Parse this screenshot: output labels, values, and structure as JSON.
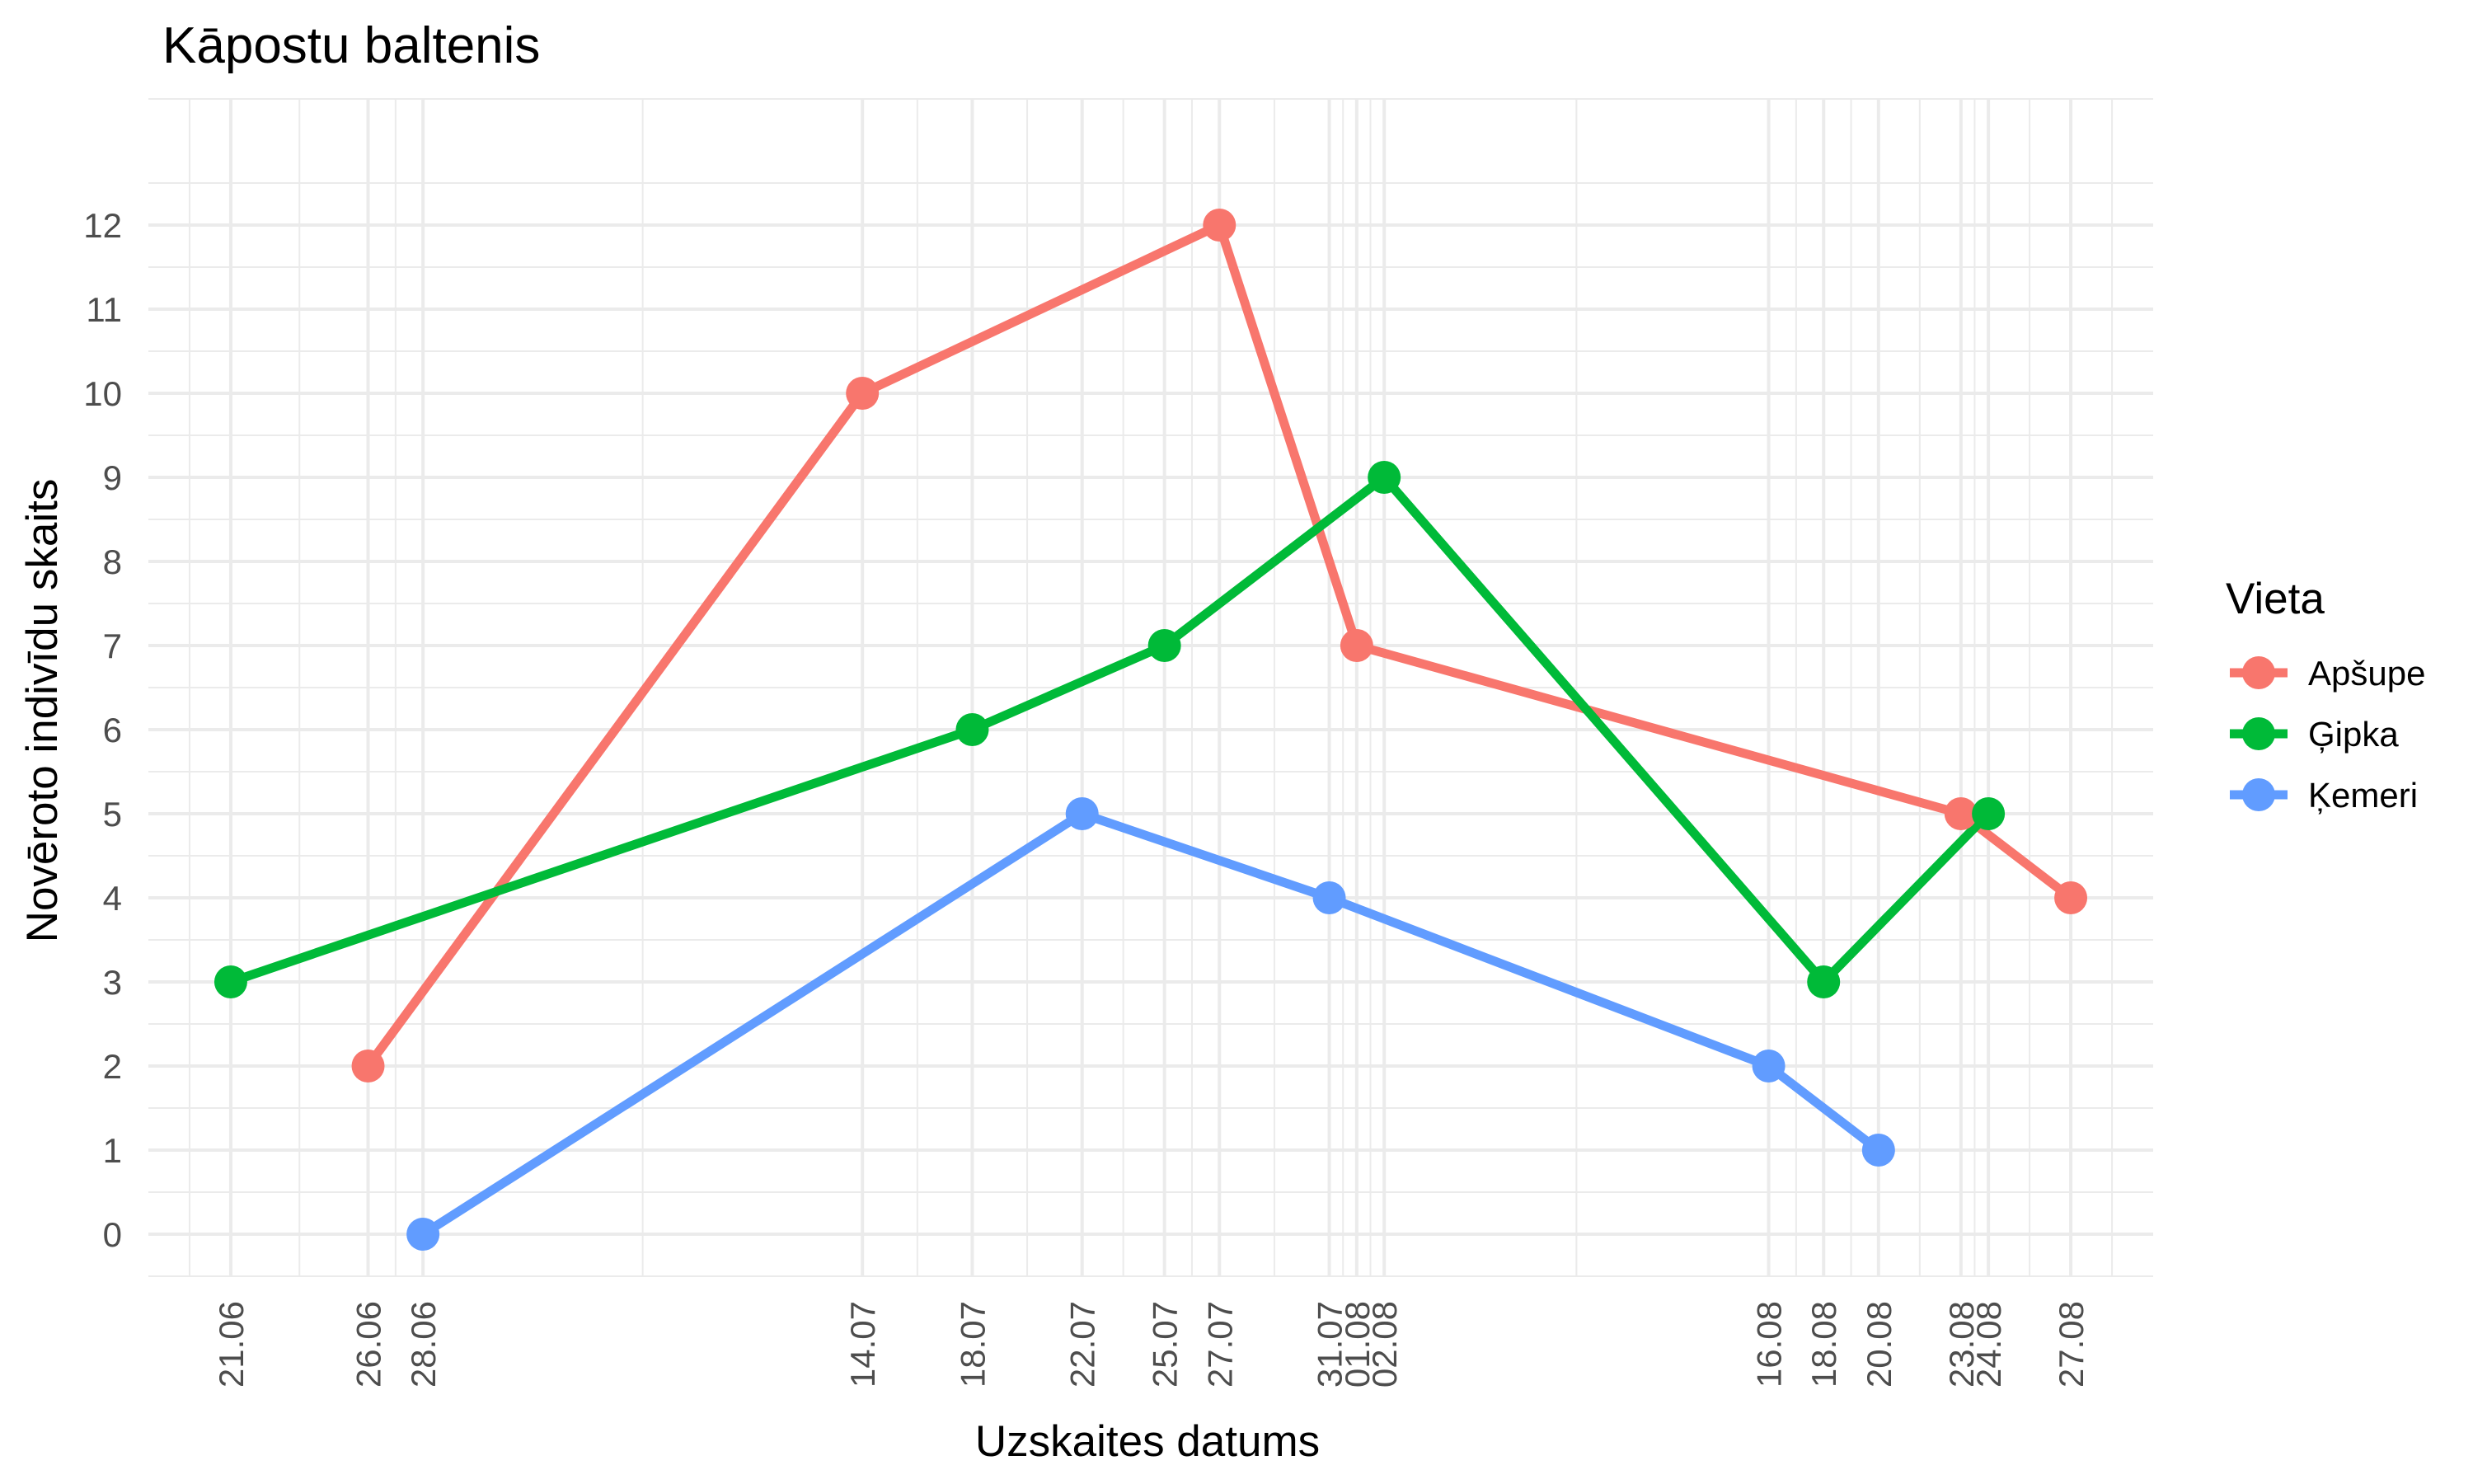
{
  "chart_data": {
    "type": "line",
    "title": "Kāpostu baltenis",
    "xlabel": "Uzskaites datums",
    "ylabel": "Novēroto indivīdu skaits",
    "x_ticks": [
      {
        "date": "2023-06-21",
        "label": "21.06"
      },
      {
        "date": "2023-06-26",
        "label": "26.06"
      },
      {
        "date": "2023-06-28",
        "label": "28.06"
      },
      {
        "date": "2023-07-14",
        "label": "14.07"
      },
      {
        "date": "2023-07-18",
        "label": "18.07"
      },
      {
        "date": "2023-07-22",
        "label": "22.07"
      },
      {
        "date": "2023-07-25",
        "label": "25.07"
      },
      {
        "date": "2023-07-27",
        "label": "27.07"
      },
      {
        "date": "2023-07-31",
        "label": "31.07"
      },
      {
        "date": "2023-08-01",
        "label": "01.08"
      },
      {
        "date": "2023-08-02",
        "label": "02.08"
      },
      {
        "date": "2023-08-16",
        "label": "16.08"
      },
      {
        "date": "2023-08-18",
        "label": "18.08"
      },
      {
        "date": "2023-08-20",
        "label": "20.08"
      },
      {
        "date": "2023-08-23",
        "label": "23.08"
      },
      {
        "date": "2023-08-24",
        "label": "24.08"
      },
      {
        "date": "2023-08-27",
        "label": "27.08"
      }
    ],
    "xlim": [
      "2023-06-18",
      "2023-08-30"
    ],
    "ylim": [
      -0.5,
      13.5
    ],
    "y_ticks": [
      0,
      1,
      2,
      3,
      4,
      5,
      6,
      7,
      8,
      9,
      10,
      11,
      12
    ],
    "grid": true,
    "legend": {
      "title": "Vieta",
      "position": "right"
    },
    "series": [
      {
        "name": "Apšupe",
        "color": "#F8766D",
        "points": [
          {
            "x": "2023-06-26",
            "y": 2
          },
          {
            "x": "2023-07-14",
            "y": 10
          },
          {
            "x": "2023-07-27",
            "y": 12
          },
          {
            "x": "2023-08-01",
            "y": 7
          },
          {
            "x": "2023-08-23",
            "y": 5
          },
          {
            "x": "2023-08-27",
            "y": 4
          }
        ]
      },
      {
        "name": "Ģipka",
        "color": "#00BA38",
        "points": [
          {
            "x": "2023-06-21",
            "y": 3
          },
          {
            "x": "2023-07-18",
            "y": 6
          },
          {
            "x": "2023-07-25",
            "y": 7
          },
          {
            "x": "2023-08-02",
            "y": 9
          },
          {
            "x": "2023-08-18",
            "y": 3
          },
          {
            "x": "2023-08-24",
            "y": 5
          }
        ]
      },
      {
        "name": "Ķemeri",
        "color": "#619CFF",
        "points": [
          {
            "x": "2023-06-28",
            "y": 0
          },
          {
            "x": "2023-07-22",
            "y": 5
          },
          {
            "x": "2023-07-31",
            "y": 4
          },
          {
            "x": "2023-08-16",
            "y": 2
          },
          {
            "x": "2023-08-20",
            "y": 1
          }
        ]
      }
    ]
  }
}
